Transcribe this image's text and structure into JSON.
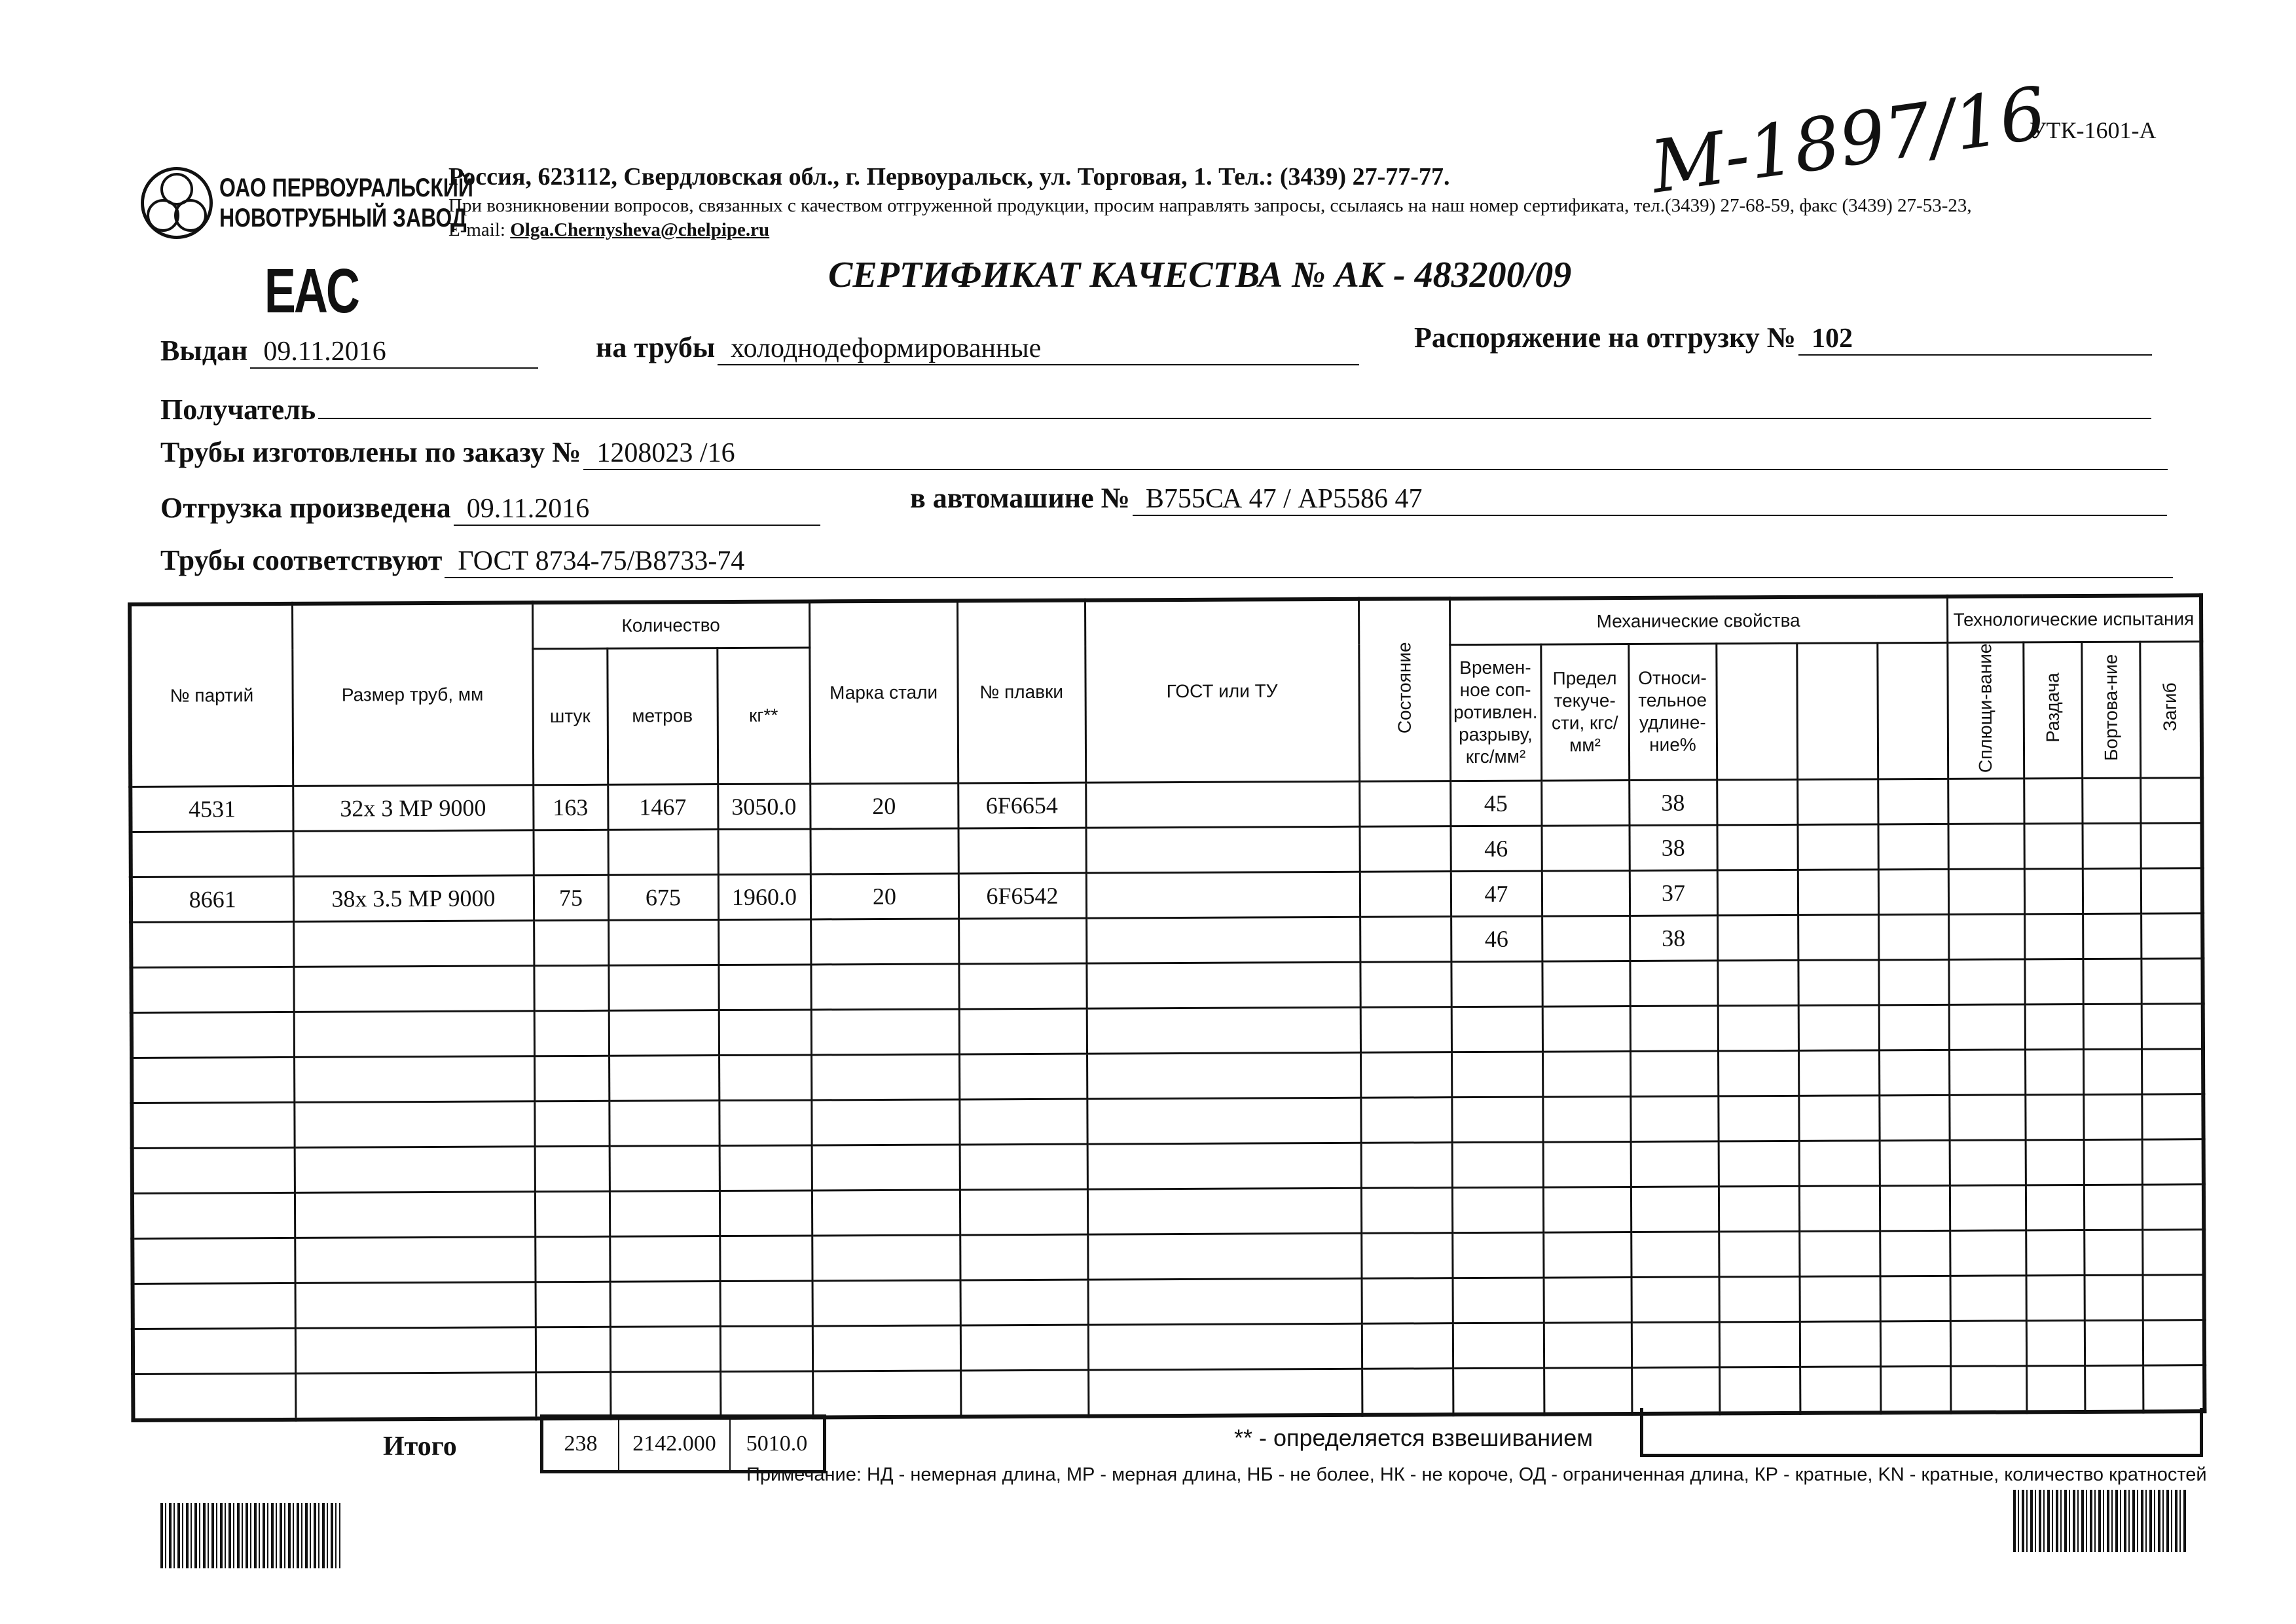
{
  "company": {
    "name_line1": "ОАО ПЕРВОУРАЛЬСКИЙ",
    "name_line2": "НОВОТРУБНЫЙ ЗАВОД",
    "address": "Россия, 623112, Свердловская обл., г. Первоуральск, ул. Торговая, 1. Тел.: (3439) 27-77-77.",
    "contact_note": "При возникновении вопросов, связанных с качеством отгруженной продукции, просим направлять запросы, ссылаясь на наш номер сертификата, тел.(3439) 27-68-59, факс (3439) 27-53-23,",
    "email_label": "E-mail:",
    "email": "Olga.Chernysheva@chelpipe.ru"
  },
  "handwritten_number": "М-1897/16",
  "form_code": "УТК-1601-А",
  "eac_mark": "EAC",
  "title": "СЕРТИФИКАТ КАЧЕСТВА   № АК - 483200/09",
  "fields": {
    "issued_label": "Выдан",
    "issued": "09.11.2016",
    "pipes_label": "на трубы",
    "pipes": "холоднодеформированные",
    "order_label": "Распоряжение на отгрузку №",
    "order": "102",
    "recipient_label": "Получатель",
    "recipient": "",
    "made_label": "Трубы изготовлены по заказу №",
    "made": "1208023   /16",
    "shipped_label": "Отгрузка произведена",
    "shipped": "09.11.2016",
    "truck_label": "в автомашине №",
    "truck": "В755СА 47 / АР5586 47",
    "conform_label": "Трубы соответствуют",
    "conform": "ГОСТ 8734-75/В8733-74"
  },
  "table": {
    "headers": {
      "batch": "№ партий",
      "size": "Размер труб, мм",
      "quantity": "Количество",
      "pcs": "штук",
      "meters": "метров",
      "kg": "кг**",
      "grade": "Марка стали",
      "heat": "№ плавки",
      "gost": "ГОСТ или ТУ",
      "state": "Состояние",
      "mech": "Механические свойства",
      "tensile": "Времен-ное соп-ротивлен. разрыву, кгс/мм²",
      "yield": "Предел текуче-сти, кгс/мм²",
      "elong": "Относи-тельное удлине-ние%",
      "tech": "Технологические испытания",
      "flat": "Сплющи-вание",
      "expand": "Раздача",
      "flange": "Бортова-ние",
      "bend": "Загиб"
    },
    "rows": [
      {
        "batch": "4531",
        "size": "32x 3 МР 9000",
        "pcs": "163",
        "meters": "1467",
        "kg": "3050.0",
        "grade": "20",
        "heat": "6F6654",
        "tensile": "45",
        "elong": "38"
      },
      {
        "batch": "",
        "size": "",
        "pcs": "",
        "meters": "",
        "kg": "",
        "grade": "",
        "heat": "",
        "tensile": "46",
        "elong": "38"
      },
      {
        "batch": "8661",
        "size": "38x 3.5 МР 9000",
        "pcs": "75",
        "meters": "675",
        "kg": "1960.0",
        "grade": "20",
        "heat": "6F6542",
        "tensile": "47",
        "elong": "37"
      },
      {
        "batch": "",
        "size": "",
        "pcs": "",
        "meters": "",
        "kg": "",
        "grade": "",
        "heat": "",
        "tensile": "46",
        "elong": "38"
      }
    ],
    "total_label": "Итого",
    "total_pcs": "238",
    "total_meters": "2142.000",
    "total_kg": "5010.0",
    "weighing_note": "** - определяется взвешиванием"
  },
  "note": "Примечание: НД - немерная длина, МР - мерная длина, НБ - не более, НК - не короче, ОД - ограниченная длина, КР - кратные, KN - кратные, количество кратностей"
}
